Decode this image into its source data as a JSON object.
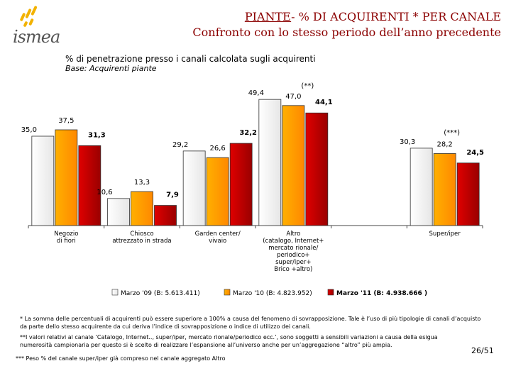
{
  "header": {
    "logo_text": "ismea",
    "title_underlined": "PIANTE",
    "title_rest": "- % DI ACQUIRENTI *  PER CANALE",
    "subtitle": "Confronto con lo stesso periodo dell’anno precedente"
  },
  "chart_data": {
    "type": "bar",
    "title": "% di penetrazione presso i canali calcolata sugli acquirenti",
    "subtitle": "Base: Acquirenti piante",
    "categories": [
      "Negozio\ndi fiori",
      "Chiosco\nattrezzato in strada",
      "Garden center/\nvivaio",
      "Altro\n(catalogo, Internet+\nmercato rionale/\nperiodico+\nsuper/iper+\nBrico +altro)",
      "",
      "Super/iper"
    ],
    "series": [
      {
        "name": "Marzo '09 (B: 5.613.411)",
        "values": [
          35.0,
          10.6,
          29.2,
          49.4,
          null,
          30.3
        ],
        "labels": [
          "35,0",
          "10,6",
          "29,2",
          "49,4",
          "",
          "30,3"
        ],
        "color": "#ffffff"
      },
      {
        "name": "Marzo '10 (B: 4.823.952)",
        "values": [
          37.5,
          13.3,
          26.6,
          47.0,
          null,
          28.2
        ],
        "labels": [
          "37,5",
          "13,3",
          "26,6",
          "47,0",
          "",
          "28,2"
        ],
        "color": "#ff9900"
      },
      {
        "name": "Marzo '11 (B: 4.938.666 )",
        "values": [
          31.3,
          7.9,
          32.2,
          44.1,
          null,
          24.5
        ],
        "labels": [
          "31,3",
          "7,9",
          "32,2",
          "44,1",
          "",
          "24,5"
        ],
        "color": "#cc0000"
      }
    ],
    "annotations": [
      "(**)",
      "(***)"
    ],
    "ylim": [
      0,
      55
    ]
  },
  "footnotes": {
    "note1": "* La somma delle percentuali di acquirenti può essere superiore a 100% a causa del fenomeno di sovrapposizione. Tale è l’uso di più tipologie di canali d’acquisto da parte dello stesso acquirente da cui deriva l’indice di sovrapposizione o indice di utilizzo dei canali.",
    "note2": "**I valori relativi al canale ‘Catalogo, Internet.., super/iper, mercato rionale/periodico ecc.’, sono soggetti a sensibili variazioni a causa della esigua numerosità campionaria per questo si è scelto di realizzare l’espansione all’universo anche per un’aggregazione “altro” più ampia.",
    "note3": "*** Peso % del canale super/iper già compreso nel canale aggregato Altro"
  },
  "page_number": "26/51"
}
